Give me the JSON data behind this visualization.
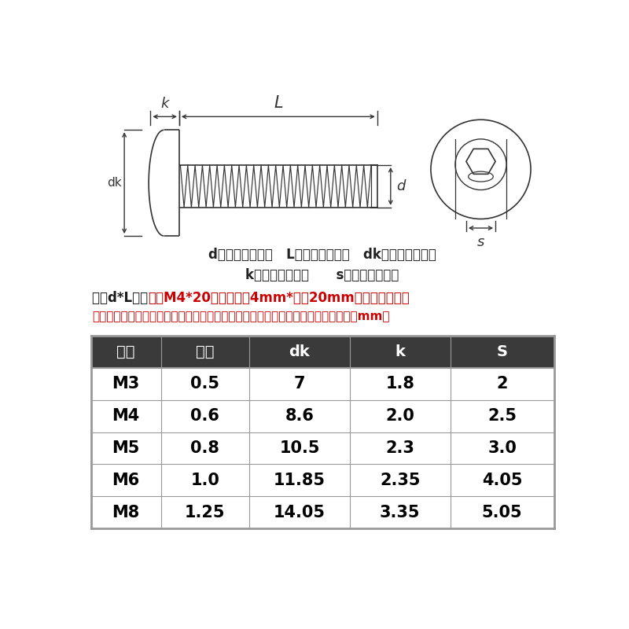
{
  "bg_color": "#ffffff",
  "diagram_label1": "d：代表螺纹直径   L：代表螺纹长度   dk：代表头部直径",
  "diagram_label2": "k：代表头部厚度      s：代表六角对边",
  "note1_black": "规格d*L组成   ",
  "note1_red": "如：M4*20（螺纹直径4mm*长度20mm）不含头部厚度",
  "spec_note2": "以下数据为单批次手工测量，存在一定误差，请以实物为准！介意者慎拍。（单位：mm）",
  "table_headers": [
    "规格",
    "牙距",
    "dk",
    "k",
    "S"
  ],
  "table_data": [
    [
      "M3",
      "0.5",
      "7",
      "1.8",
      "2"
    ],
    [
      "M4",
      "0.6",
      "8.6",
      "2.0",
      "2.5"
    ],
    [
      "M5",
      "0.8",
      "10.5",
      "2.3",
      "3.0"
    ],
    [
      "M6",
      "1.0",
      "11.85",
      "2.35",
      "4.05"
    ],
    [
      "M8",
      "1.25",
      "14.05",
      "3.35",
      "5.05"
    ]
  ],
  "header_bg": "#3a3a3a",
  "header_fg": "#ffffff",
  "row_bg": "#ffffff",
  "row_fg": "#000000",
  "grid_color": "#999999",
  "line_color": "#333333"
}
